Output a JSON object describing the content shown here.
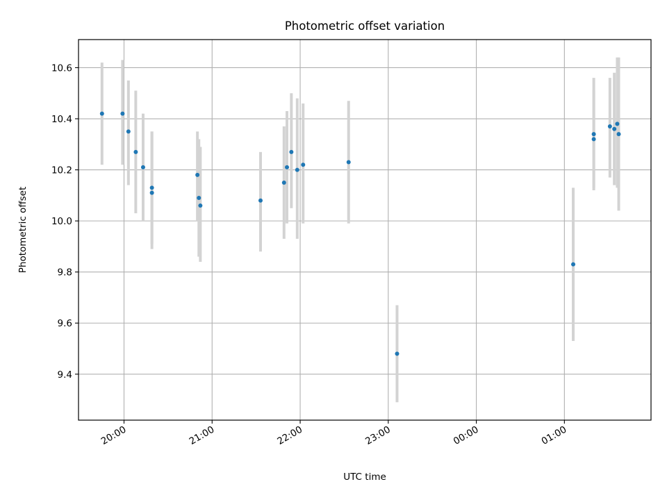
{
  "chart_data": {
    "type": "scatter",
    "title": "Photometric offset variation",
    "xlabel": "UTC time",
    "ylabel": "Photometric offset",
    "x_unit": "UTC time (HH:MM), axis spans 19:29 to 01:59 next day",
    "xlim": [
      "19:29",
      "01:59"
    ],
    "ylim": [
      9.22,
      10.71
    ],
    "xticks": [
      "20:00",
      "21:00",
      "22:00",
      "23:00",
      "00:00",
      "01:00"
    ],
    "yticks": [
      "9.4",
      "9.6",
      "9.8",
      "10.0",
      "10.2",
      "10.4",
      "10.6"
    ],
    "grid": true,
    "colors": {
      "point": "#1f77b4",
      "errorbar": "#d3d3d3",
      "grid": "#b0b0b0"
    },
    "points": [
      {
        "x": "19:45",
        "y": 10.42,
        "yerr_low": 10.22,
        "yerr_high": 10.62
      },
      {
        "x": "19:59",
        "y": 10.42,
        "yerr_low": 10.22,
        "yerr_high": 10.63
      },
      {
        "x": "20:03",
        "y": 10.35,
        "yerr_low": 10.14,
        "yerr_high": 10.55
      },
      {
        "x": "20:08",
        "y": 10.27,
        "yerr_low": 10.03,
        "yerr_high": 10.51
      },
      {
        "x": "20:13",
        "y": 10.21,
        "yerr_low": 10.0,
        "yerr_high": 10.42
      },
      {
        "x": "20:19",
        "y": 10.13,
        "yerr_low": 9.91,
        "yerr_high": 10.35
      },
      {
        "x": "20:19",
        "y": 10.11,
        "yerr_low": 9.89,
        "yerr_high": 10.35
      },
      {
        "x": "20:50",
        "y": 10.18,
        "yerr_low": 10.0,
        "yerr_high": 10.35
      },
      {
        "x": "20:51",
        "y": 10.09,
        "yerr_low": 9.86,
        "yerr_high": 10.32
      },
      {
        "x": "20:52",
        "y": 10.06,
        "yerr_low": 9.84,
        "yerr_high": 10.29
      },
      {
        "x": "21:33",
        "y": 10.08,
        "yerr_low": 9.88,
        "yerr_high": 10.27
      },
      {
        "x": "21:49",
        "y": 10.15,
        "yerr_low": 9.93,
        "yerr_high": 10.37
      },
      {
        "x": "21:51",
        "y": 10.21,
        "yerr_low": 9.99,
        "yerr_high": 10.43
      },
      {
        "x": "21:54",
        "y": 10.27,
        "yerr_low": 10.05,
        "yerr_high": 10.5
      },
      {
        "x": "21:58",
        "y": 10.2,
        "yerr_low": 9.93,
        "yerr_high": 10.48
      },
      {
        "x": "22:02",
        "y": 10.22,
        "yerr_low": 9.99,
        "yerr_high": 10.46
      },
      {
        "x": "22:33",
        "y": 10.23,
        "yerr_low": 9.99,
        "yerr_high": 10.47
      },
      {
        "x": "23:06",
        "y": 9.48,
        "yerr_low": 9.29,
        "yerr_high": 9.67
      },
      {
        "x": "01:06",
        "y": 9.83,
        "yerr_low": 9.53,
        "yerr_high": 10.13
      },
      {
        "x": "01:20",
        "y": 10.34,
        "yerr_low": 10.12,
        "yerr_high": 10.56
      },
      {
        "x": "01:20",
        "y": 10.32,
        "yerr_low": 10.13,
        "yerr_high": 10.51
      },
      {
        "x": "01:31",
        "y": 10.37,
        "yerr_low": 10.17,
        "yerr_high": 10.56
      },
      {
        "x": "01:34",
        "y": 10.36,
        "yerr_low": 10.14,
        "yerr_high": 10.58
      },
      {
        "x": "01:36",
        "y": 10.38,
        "yerr_low": 10.13,
        "yerr_high": 10.64
      },
      {
        "x": "01:37",
        "y": 10.34,
        "yerr_low": 10.04,
        "yerr_high": 10.64
      }
    ]
  }
}
